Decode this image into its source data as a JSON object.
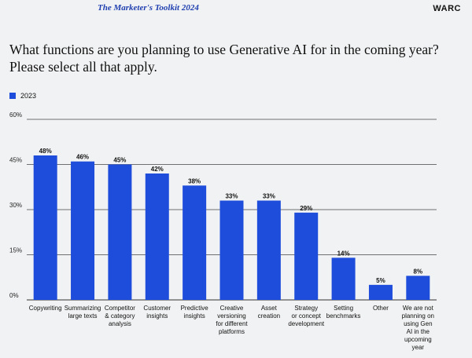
{
  "header": {
    "report_title": "The Marketer's Toolkit 2024",
    "brand": "WARC"
  },
  "colors": {
    "bar": "#1f4ddb",
    "accent": "#1f3fb0",
    "background": "#f1f2f3"
  },
  "chart_data": {
    "type": "bar",
    "title": "What functions are you planning to use Generative AI for in the coming year? Please select all that apply.",
    "xlabel": "",
    "ylabel": "",
    "ylim": [
      0,
      60
    ],
    "yticks": [
      "0%",
      "15%",
      "30%",
      "45%",
      "60%"
    ],
    "grid": true,
    "legend_position": "top-left",
    "series": [
      {
        "name": "2023",
        "values": [
          48,
          46,
          45,
          42,
          38,
          33,
          33,
          29,
          14,
          5,
          8
        ],
        "labels": [
          "48%",
          "46%",
          "45%",
          "42%",
          "38%",
          "33%",
          "33%",
          "29%",
          "14%",
          "5%",
          "8%"
        ]
      }
    ],
    "categories": [
      [
        "Copywriting"
      ],
      [
        "Summarizing",
        "large texts"
      ],
      [
        "Competitor",
        "& category",
        "analysis"
      ],
      [
        "Customer",
        "insights"
      ],
      [
        "Predictive",
        "insights"
      ],
      [
        "Creative",
        "versioning",
        "for different",
        "platforms"
      ],
      [
        "Asset",
        "creation"
      ],
      [
        "Strategy",
        "or concept",
        "development"
      ],
      [
        "Setting",
        "benchmarks"
      ],
      [
        "Other"
      ],
      [
        "We are not",
        "planning on",
        "using Gen",
        "AI in the",
        "upcoming",
        "year"
      ]
    ]
  }
}
